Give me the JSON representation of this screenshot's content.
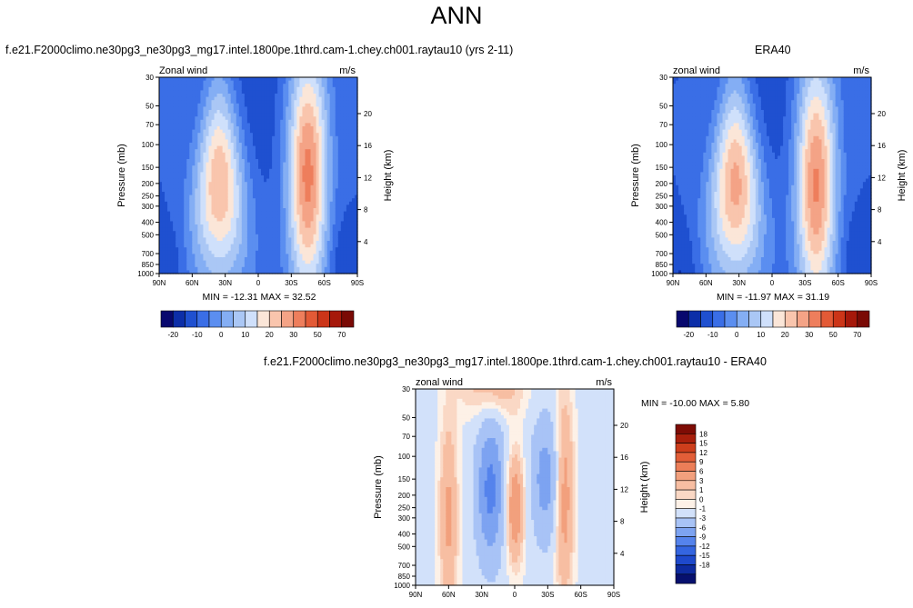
{
  "main_title": "ANN",
  "colors": {
    "abs_scale": [
      "#08086e",
      "#0c2ea8",
      "#1f50d0",
      "#3a6ee6",
      "#5b8ef0",
      "#84aef4",
      "#aac7f5",
      "#cfe0fb",
      "#fbe6d8",
      "#f9c5ad",
      "#f4a386",
      "#ee7e5c",
      "#e35a36",
      "#cc3518",
      "#a6180a",
      "#7a0a05"
    ],
    "diff_scale": [
      "#07106e",
      "#0e2ba0",
      "#1e49cc",
      "#3465e0",
      "#5583ec",
      "#7da3f1",
      "#a8c3f6",
      "#d2e1fa",
      "#fdf1e7",
      "#fad8c5",
      "#f7bea2",
      "#f2a07d",
      "#ec7e58",
      "#e25e38",
      "#cd3e1c",
      "#a81f0c",
      "#7e0c05"
    ]
  },
  "chart_data": [
    {
      "id": "test",
      "type": "heatmap",
      "title": "f.e21.F2000climo.ne30pg3_ne30pg3_mg17.intel.1800pe.1thrd.cam-1.chey.ch001.raytau10 (yrs 2-11)",
      "left_string": "Zonal wind",
      "right_string": "m/s",
      "ylabel": "Pressure (mb)",
      "y2label": "Height (km)",
      "xticks": [
        "90N",
        "60N",
        "30N",
        "0",
        "30S",
        "60S",
        "90S"
      ],
      "yticks": [
        "30",
        "50",
        "70",
        "100",
        "150",
        "200",
        "250",
        "300",
        "400",
        "500",
        "700",
        "850",
        "1000"
      ],
      "y2ticks": [
        "20",
        "16",
        "12",
        "8",
        "4"
      ],
      "stats": "MIN = -12.31   MAX =  32.52",
      "ylim": [
        1000,
        30
      ],
      "xlim": [
        90,
        -90
      ],
      "min": -12.31,
      "max": 32.52,
      "colorbar_labels": [
        "-20",
        "-10",
        "0",
        "10",
        "20",
        "30",
        "50",
        "70"
      ],
      "jets": [
        {
          "lat": 35,
          "p": 200,
          "max": 25
        },
        {
          "lat": -45,
          "p": 170,
          "max": 32
        }
      ]
    },
    {
      "id": "obs",
      "type": "heatmap",
      "title": "ERA40",
      "left_string": "zonal wind",
      "right_string": "m/s",
      "ylabel": "Pressure (mb)",
      "y2label": "Height (km)",
      "xticks": [
        "90N",
        "60N",
        "30N",
        "0",
        "30S",
        "60S",
        "90S"
      ],
      "yticks": [
        "30",
        "50",
        "70",
        "100",
        "150",
        "200",
        "250",
        "300",
        "400",
        "500",
        "700",
        "850",
        "1000"
      ],
      "y2ticks": [
        "20",
        "16",
        "12",
        "8",
        "4"
      ],
      "stats": "MIN = -11.97   MAX =  31.19",
      "ylim": [
        1000,
        30
      ],
      "xlim": [
        90,
        -90
      ],
      "min": -11.97,
      "max": 31.19,
      "colorbar_labels": [
        "-20",
        "-10",
        "0",
        "10",
        "20",
        "30",
        "50",
        "70"
      ],
      "jets": [
        {
          "lat": 33,
          "p": 200,
          "max": 27
        },
        {
          "lat": -40,
          "p": 200,
          "max": 31
        }
      ]
    },
    {
      "id": "diff",
      "type": "heatmap",
      "title": "f.e21.F2000climo.ne30pg3_ne30pg3_mg17.intel.1800pe.1thrd.cam-1.chey.ch001.raytau10 - ERA40",
      "left_string": "zonal wind",
      "right_string": "m/s",
      "ylabel": "Pressure (mb)",
      "y2label": "Height (km)",
      "xticks": [
        "90N",
        "60N",
        "30N",
        "0",
        "30S",
        "60S",
        "90S"
      ],
      "yticks": [
        "30",
        "50",
        "70",
        "100",
        "150",
        "200",
        "250",
        "300",
        "400",
        "500",
        "700",
        "850",
        "1000"
      ],
      "y2ticks": [
        "20",
        "16",
        "12",
        "8",
        "4"
      ],
      "stats": "MIN = -10.00   MAX =   5.80",
      "ylim": [
        1000,
        30
      ],
      "xlim": [
        90,
        -90
      ],
      "min": -10.0,
      "max": 5.8,
      "colorbar_labels": [
        "18",
        "15",
        "12",
        "9",
        "6",
        "3",
        "1",
        "0",
        "-1",
        "-3",
        "-6",
        "-9",
        "-12",
        "-15",
        "-18"
      ]
    }
  ]
}
